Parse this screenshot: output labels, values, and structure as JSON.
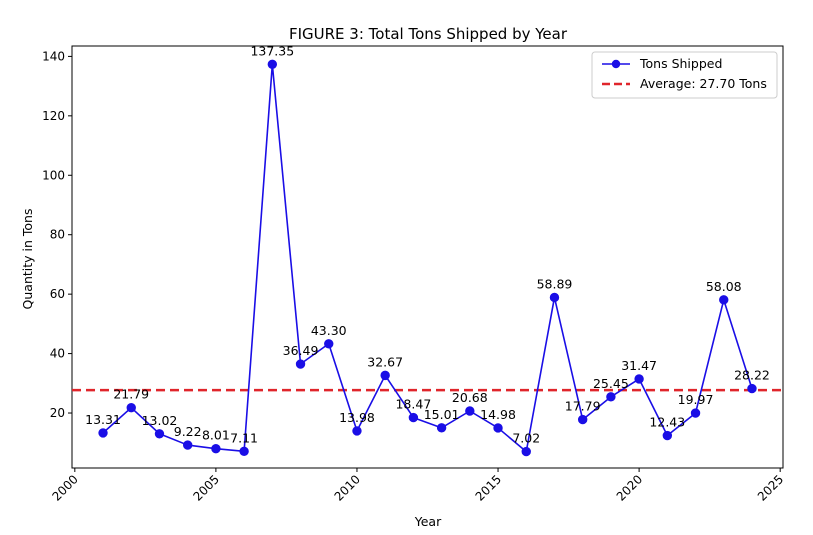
{
  "chart_data": {
    "type": "line",
    "title": "FIGURE 3: Total Tons Shipped by Year",
    "xlabel": "Year",
    "ylabel": "Quantity in Tons",
    "xlim": [
      1999.9,
      2025.1
    ],
    "ylim": [
      1.5,
      143.5
    ],
    "x_ticks": [
      2000,
      2005,
      2010,
      2015,
      2020,
      2025
    ],
    "y_ticks": [
      20,
      40,
      60,
      80,
      100,
      120,
      140
    ],
    "grid": false,
    "legend_position": "top-right",
    "series": [
      {
        "name": "Tons Shipped",
        "color": "#1a0ee6",
        "marker": "circle",
        "x": [
          2001,
          2002,
          2003,
          2004,
          2005,
          2006,
          2007,
          2008,
          2009,
          2010,
          2011,
          2012,
          2013,
          2014,
          2015,
          2016,
          2017,
          2018,
          2019,
          2020,
          2021,
          2022,
          2023,
          2024
        ],
        "y": [
          13.31,
          21.79,
          13.02,
          9.22,
          8.01,
          7.11,
          137.35,
          36.49,
          43.3,
          13.98,
          32.67,
          18.47,
          15.01,
          20.68,
          14.98,
          7.02,
          58.89,
          17.79,
          25.45,
          31.47,
          12.43,
          19.97,
          58.08,
          28.22
        ],
        "labels": [
          "13.31",
          "21.79",
          "13.02",
          "9.22",
          "8.01",
          "7.11",
          "137.35",
          "36.49",
          "43.30",
          "13.98",
          "32.67",
          "18.47",
          "15.01",
          "20.68",
          "14.98",
          "7.02",
          "58.89",
          "17.79",
          "25.45",
          "31.47",
          "12.43",
          "19.97",
          "58.08",
          "28.22"
        ]
      }
    ],
    "reference_lines": [
      {
        "name": "Average: 27.70 Tons",
        "y": 27.7,
        "color": "#e0252b",
        "style": "dashed"
      }
    ]
  }
}
